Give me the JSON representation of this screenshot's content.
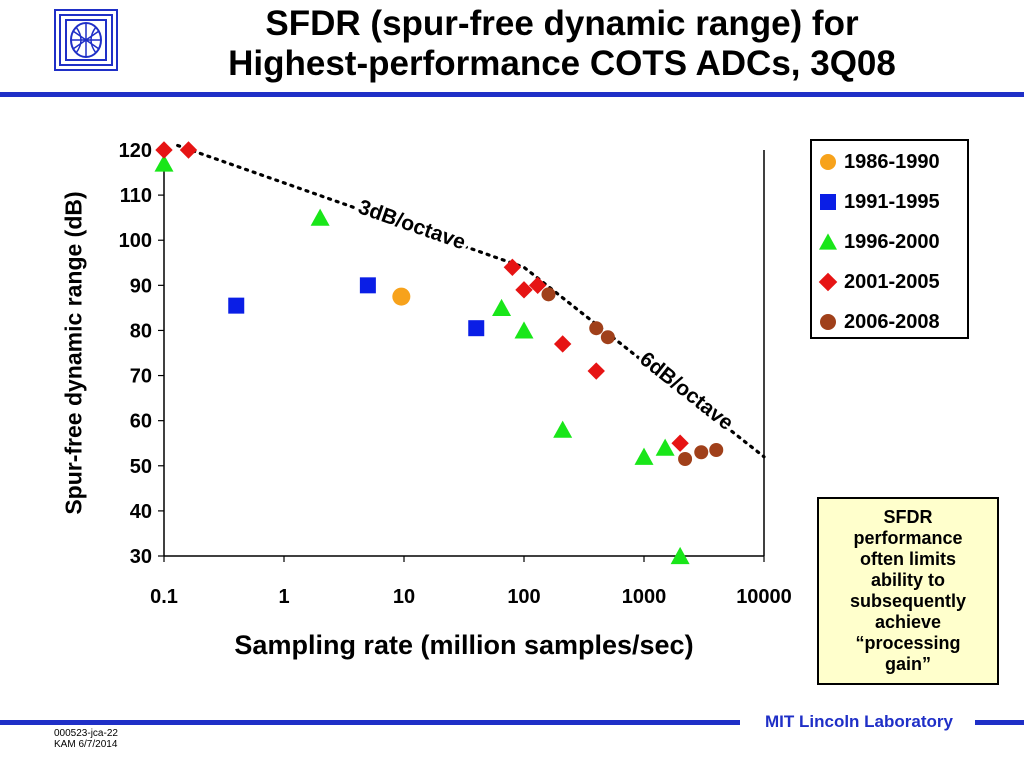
{
  "slide": {
    "title_line1": "SFDR (spur-free dynamic range) for",
    "title_line2": "Highest-performance COTS ADCs, 3Q08",
    "note": "SFDR performance often limits ability to subsequently achieve “processing gain”",
    "lab_name": "MIT Lincoln Laboratory",
    "footer_code": "000523-jca-22",
    "footer_author_date": "KAM 6/7/2014",
    "logo_icon": "mit-ll-logo-icon",
    "accent_color": "#1f2fc7",
    "note_background": "#ffffcc"
  },
  "chart_data": {
    "type": "scatter",
    "xlabel": "Sampling rate (million samples/sec)",
    "ylabel": "Spur-free dynamic range (dB)",
    "x_scale": "log",
    "xlim": [
      0.1,
      10000
    ],
    "ylim": [
      30,
      120
    ],
    "x_tick_labels": [
      "0.1",
      "1",
      "10",
      "100",
      "1000",
      "10000"
    ],
    "y_ticks": [
      30,
      40,
      50,
      60,
      70,
      80,
      90,
      100,
      110,
      120
    ],
    "grid": false,
    "legend_position": "right",
    "series": [
      {
        "name": "1986-1990",
        "marker": "circle",
        "color": "#f7a21b",
        "points": [
          [
            9.5,
            87.5
          ]
        ]
      },
      {
        "name": "1991-1995",
        "marker": "square",
        "color": "#0a1ee6",
        "points": [
          [
            0.4,
            85.5
          ],
          [
            5,
            90
          ],
          [
            40,
            80.5
          ]
        ]
      },
      {
        "name": "1996-2000",
        "marker": "triangle",
        "color": "#19e619",
        "points": [
          [
            0.1,
            117
          ],
          [
            2,
            105
          ],
          [
            65,
            85
          ],
          [
            100,
            80
          ],
          [
            210,
            58
          ],
          [
            1000,
            52
          ],
          [
            1500,
            54
          ],
          [
            2000,
            30
          ]
        ]
      },
      {
        "name": "2001-2005",
        "marker": "diamond",
        "color": "#e61414",
        "points": [
          [
            0.1,
            120
          ],
          [
            0.16,
            120
          ],
          [
            80,
            94
          ],
          [
            100,
            89
          ],
          [
            130,
            90
          ],
          [
            210,
            77
          ],
          [
            400,
            71
          ],
          [
            2000,
            55
          ]
        ]
      },
      {
        "name": "2006-2008",
        "marker": "circle",
        "color": "#a0401a",
        "points": [
          [
            160,
            88
          ],
          [
            400,
            80.5
          ],
          [
            500,
            78.5
          ],
          [
            2200,
            51.5
          ],
          [
            3000,
            53
          ],
          [
            4000,
            53.5
          ]
        ]
      }
    ],
    "annotations": [
      {
        "text": "3dB/octave",
        "style": "dotted trend line"
      },
      {
        "text": "6dB/octave",
        "style": "dotted trend line"
      }
    ],
    "trend_line": [
      [
        0.13,
        121
      ],
      [
        100,
        94
      ],
      [
        10000,
        52
      ]
    ]
  }
}
